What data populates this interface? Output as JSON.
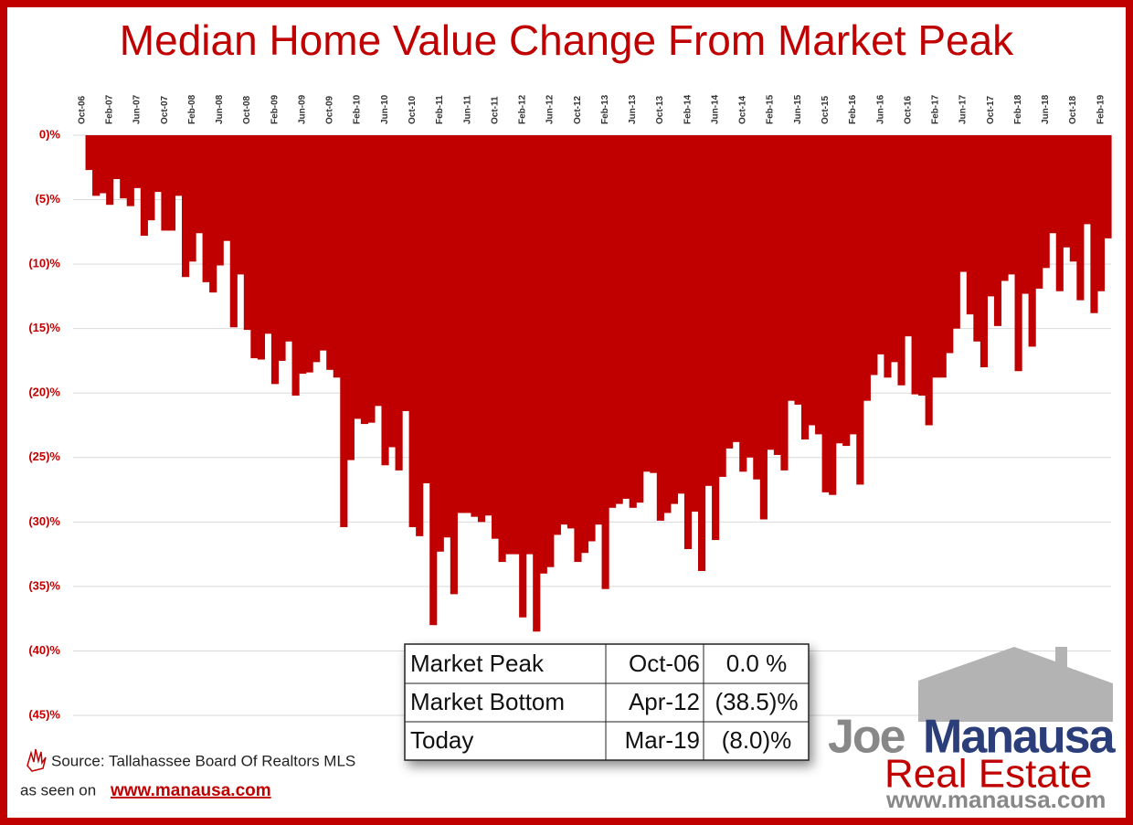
{
  "chart_data": {
    "type": "bar",
    "title": "Median Home Value Change From Market Peak",
    "color": "#c00000",
    "grid": true,
    "categories": [
      "Oct-06",
      null,
      null,
      null,
      "Feb-07",
      null,
      null,
      null,
      "Jun-07",
      null,
      null,
      null,
      "Oct-07",
      null,
      null,
      null,
      "Feb-08",
      null,
      null,
      null,
      "Jun-08",
      null,
      null,
      null,
      "Oct-08",
      null,
      null,
      null,
      "Feb-09",
      null,
      null,
      null,
      "Jun-09",
      null,
      null,
      null,
      "Oct-09",
      null,
      null,
      null,
      "Feb-10",
      null,
      null,
      null,
      "Jun-10",
      null,
      null,
      null,
      "Oct-10",
      null,
      null,
      null,
      "Feb-11",
      null,
      null,
      null,
      "Jun-11",
      null,
      null,
      null,
      "Oct-11",
      null,
      null,
      null,
      "Feb-12",
      null,
      null,
      null,
      "Jun-12",
      null,
      null,
      null,
      "Oct-12",
      null,
      null,
      null,
      "Feb-13",
      null,
      null,
      null,
      "Jun-13",
      null,
      null,
      null,
      "Oct-13",
      null,
      null,
      null,
      "Feb-14",
      null,
      null,
      null,
      "Jun-14",
      null,
      null,
      null,
      "Oct-14",
      null,
      null,
      null,
      "Feb-15",
      null,
      null,
      null,
      "Jun-15",
      null,
      null,
      null,
      "Oct-15",
      null,
      null,
      null,
      "Feb-16",
      null,
      null,
      null,
      "Jun-16",
      null,
      null,
      null,
      "Oct-16",
      null,
      null,
      null,
      "Feb-17",
      null,
      null,
      null,
      "Jun-17",
      null,
      null,
      null,
      "Oct-17",
      null,
      null,
      null,
      "Feb-18",
      null,
      null,
      null,
      "Jun-18",
      null,
      null,
      null,
      "Oct-18",
      null,
      null,
      null,
      "Feb-19",
      null
    ],
    "values": [
      0,
      -2.7,
      -4.7,
      -4.5,
      -5.4,
      -3.4,
      -4.9,
      -5.5,
      -4.1,
      -7.8,
      -6.6,
      -4.4,
      -7.4,
      -7.4,
      -4.7,
      -11.0,
      -9.8,
      -7.6,
      -11.4,
      -12.2,
      -10.1,
      -8.2,
      -14.9,
      -10.8,
      -15.1,
      -17.3,
      -17.4,
      -15.4,
      -19.3,
      -17.5,
      -16.0,
      -20.2,
      -18.5,
      -18.4,
      -17.6,
      -16.7,
      -18.2,
      -18.8,
      -30.4,
      -25.2,
      -22.0,
      -22.4,
      -22.3,
      -21.0,
      -25.6,
      -24.2,
      -26.0,
      -21.4,
      -30.4,
      -31.1,
      -27.0,
      -38.0,
      -32.3,
      -31.2,
      -35.6,
      -29.3,
      -29.3,
      -29.6,
      -30.0,
      -29.5,
      -31.3,
      -33.1,
      -32.5,
      -32.5,
      -37.4,
      -32.5,
      -38.5,
      -34.0,
      -33.5,
      -31.0,
      -30.2,
      -30.5,
      -33.1,
      -32.4,
      -31.5,
      -30.2,
      -35.2,
      -28.9,
      -28.6,
      -28.2,
      -28.9,
      -28.5,
      -26.1,
      -26.2,
      -29.9,
      -29.3,
      -28.6,
      -27.8,
      -32.1,
      -29.2,
      -33.8,
      -27.2,
      -31.4,
      -26.5,
      -24.3,
      -23.8,
      -26.1,
      -25.0,
      -26.7,
      -29.8,
      -24.4,
      -24.8,
      -26.0,
      -20.6,
      -20.9,
      -23.6,
      -22.5,
      -23.2,
      -27.7,
      -27.9,
      -23.9,
      -24.1,
      -23.2,
      -27.1,
      -20.6,
      -18.6,
      -17.0,
      -18.8,
      -17.6,
      -19.4,
      -15.6,
      -20.1,
      -20.2,
      -22.5,
      -18.8,
      -18.8,
      -16.9,
      -15.0,
      -10.6,
      -13.9,
      -16.0,
      -18.0,
      -12.5,
      -14.8,
      -11.3,
      -10.8,
      -18.3,
      -12.3,
      -16.4,
      -11.9,
      -10.3,
      -7.6,
      -12.1,
      -8.7,
      -9.8,
      -12.8,
      -6.9,
      -13.8,
      -12.1,
      -8.0
    ],
    "ylim": [
      -45,
      0
    ],
    "yticks": [
      {
        "value": 0,
        "label": "0)%"
      },
      {
        "value": -5,
        "label": "(5)%"
      },
      {
        "value": -10,
        "label": "(10)%"
      },
      {
        "value": -15,
        "label": "(15)%"
      },
      {
        "value": -20,
        "label": "(20)%"
      },
      {
        "value": -25,
        "label": "(25)%"
      },
      {
        "value": -30,
        "label": "(30)%"
      },
      {
        "value": -35,
        "label": "(35)%"
      },
      {
        "value": -40,
        "label": "(40)%"
      },
      {
        "value": -45,
        "label": "(45)%"
      }
    ],
    "summary_table": [
      [
        "Market Peak",
        "Oct-06",
        "0.0 %"
      ],
      [
        "Market Bottom",
        "Apr-12",
        "(38.5)%"
      ],
      [
        "Today",
        "Mar-19",
        "(8.0)%"
      ]
    ],
    "source": "Source: Tallahassee Board Of Realtors MLS",
    "seen_on": "as seen on",
    "seen_on_link": "www.manausa.com",
    "logo": {
      "first": "Joe",
      "last": "Manausa",
      "sub": "Real Estate",
      "url": "www.manausa.com"
    }
  }
}
